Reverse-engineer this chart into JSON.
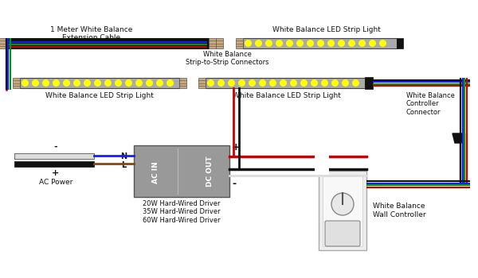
{
  "bg_color": "#ffffff",
  "wire_colors": {
    "black": "#111111",
    "red": "#cc0000",
    "blue": "#1a1aff",
    "green": "#009900",
    "white": "#dddddd",
    "brown": "#8B4513"
  },
  "led_dot_color": "#ffff00",
  "led_strip_body": "#aaaaaa",
  "led_strip_edge": "#444444",
  "connector_color": "#c8a87a",
  "driver_color": "#999999",
  "driver_edge": "#555555",
  "labels": {
    "ext_cable": "1 Meter White Balance\nExtension Cable",
    "strip1_top": "White Balance LED Strip Light",
    "strip_connector": "White Balance\nStrip-to-Strip Connectors",
    "strip2_left": "White Balance LED Strip Light",
    "strip2_right": "White Balance LED Strip Light",
    "ctrl_connector": "White Balance\nController\nConnector",
    "driver_label": "20W Hard-Wired Driver\n35W Hard-Wired Driver\n60W Hard-Wired Driver",
    "ac_power": "AC Power",
    "wall_ctrl": "White Balance\nWall Controller",
    "ac_in": "AC IN",
    "dc_out": "DC OUT",
    "plus_dc": "+",
    "minus_dc": "-",
    "minus_ac": "-",
    "plus_ac": "+",
    "N": "N",
    "L": "L"
  }
}
